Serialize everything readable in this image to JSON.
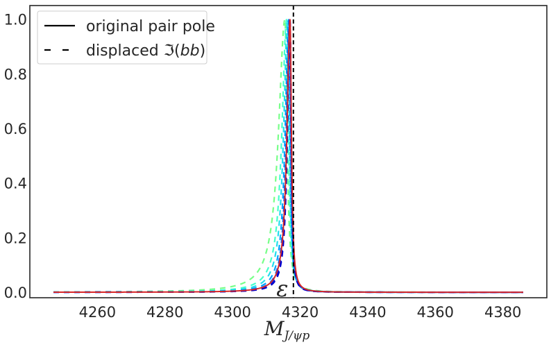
{
  "chart_data": {
    "type": "line",
    "title": "",
    "xlabel_main": "M",
    "xlabel_sub": "J/ψp",
    "ylabel": "",
    "xlim": [
      4240,
      4393
    ],
    "ylim": [
      -0.02,
      1.05
    ],
    "xticks": [
      4260,
      4280,
      4300,
      4320,
      4340,
      4360,
      4380
    ],
    "yticks": [
      0.0,
      0.2,
      0.4,
      0.6,
      0.8,
      1.0
    ],
    "grid": false,
    "legend_position": "top-left",
    "legend": [
      {
        "label": "original pair pole",
        "style": "solid",
        "color": "#000000"
      },
      {
        "label_prefix": "displaced ",
        "label_symbol": "ℑ",
        "label_italic": "bb",
        "label_open": "(",
        "label_close": ")",
        "style": "dashed",
        "color": "#000000"
      }
    ],
    "threshold": {
      "x": 4318.0,
      "label": "ε",
      "style": "dashed",
      "color": "#000000"
    },
    "x_range": [
      4247,
      4386
    ],
    "original": {
      "color": "#d62728",
      "peak_x": 4317.0,
      "left_width": 1.1,
      "right_width": 0.5
    },
    "displaced": [
      {
        "color": "#0000cc",
        "peak_x": 4317.0,
        "left_width": 0.92,
        "right_width": 0.42
      },
      {
        "color": "#0011dd",
        "peak_x": 4317.0,
        "left_width": 0.96,
        "right_width": 0.44
      },
      {
        "color": "#0033ee",
        "peak_x": 4316.9,
        "left_width": 1.0,
        "right_width": 0.46
      },
      {
        "color": "#0066ff",
        "peak_x": 4316.8,
        "left_width": 1.1,
        "right_width": 0.48
      },
      {
        "color": "#00a0ff",
        "peak_x": 4316.6,
        "left_width": 1.25,
        "right_width": 0.5
      },
      {
        "color": "#22ddee",
        "peak_x": 4316.3,
        "left_width": 1.45,
        "right_width": 0.56
      },
      {
        "color": "#44ffcc",
        "peak_x": 4316.0,
        "left_width": 1.7,
        "right_width": 0.62
      },
      {
        "color": "#77ff88",
        "peak_x": 4315.5,
        "left_width": 2.3,
        "right_width": 0.72
      }
    ]
  }
}
